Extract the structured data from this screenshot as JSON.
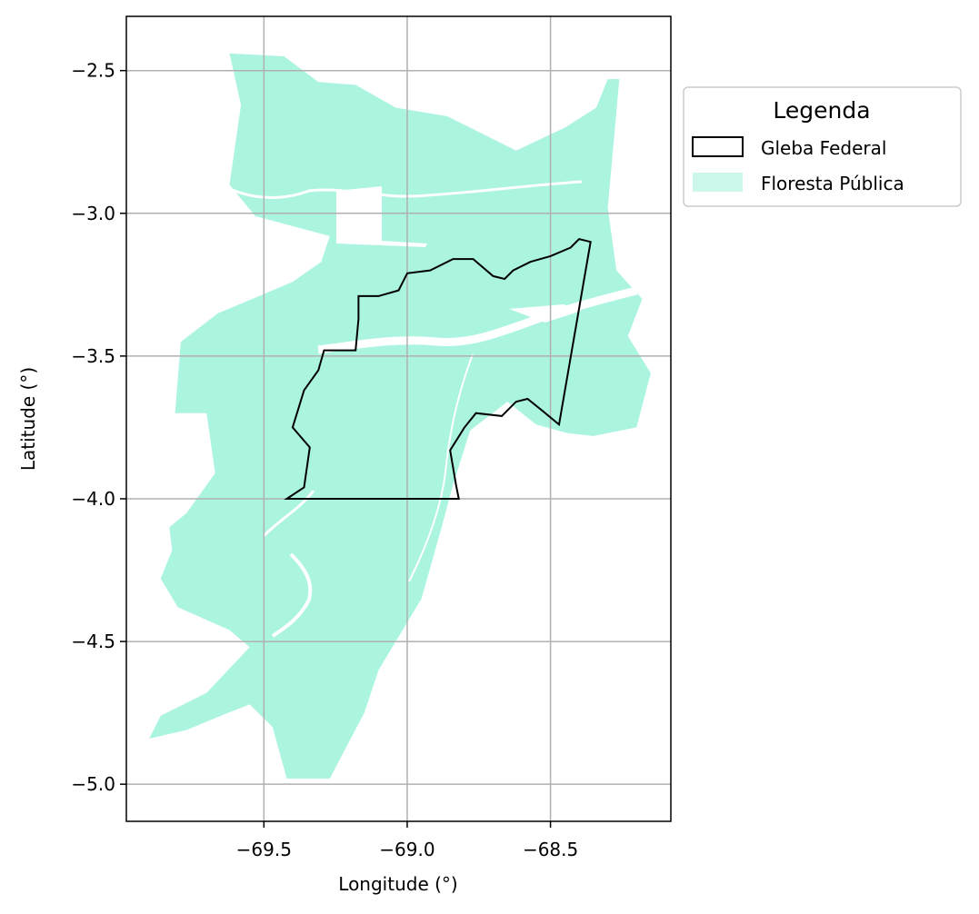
{
  "colors": {
    "forest": "#aaf4e0",
    "forest_legend": "#ccf8ec",
    "boundary": "#000000",
    "grid": "#b0b0b0"
  },
  "axes": {
    "xlabel": "Longitude (°)",
    "ylabel": "Latitude (°)",
    "xlim": [
      -69.98,
      -68.08
    ],
    "ylim": [
      -5.13,
      -2.31
    ],
    "x_ticks": [
      {
        "value": -69.5,
        "label": "−69.5"
      },
      {
        "value": -69.0,
        "label": "−69.0"
      },
      {
        "value": -68.5,
        "label": "−68.5"
      }
    ],
    "y_ticks": [
      {
        "value": -2.5,
        "label": "−2.5"
      },
      {
        "value": -3.0,
        "label": "−3.0"
      },
      {
        "value": -3.5,
        "label": "−3.5"
      },
      {
        "value": -4.0,
        "label": "−4.0"
      },
      {
        "value": -4.5,
        "label": "−4.5"
      },
      {
        "value": -5.0,
        "label": "−5.0"
      }
    ],
    "grid": true
  },
  "legend": {
    "title": "Legenda",
    "placement": "outside-right-top",
    "items": [
      {
        "label": "Gleba Federal",
        "style": "outline"
      },
      {
        "label": "Floresta Pública",
        "style": "fill"
      }
    ]
  },
  "layers": {
    "floresta_publica": [
      [
        -69.62,
        -2.44
      ],
      [
        -69.43,
        -2.45
      ],
      [
        -69.31,
        -2.54
      ],
      [
        -69.18,
        -2.55
      ],
      [
        -69.04,
        -2.63
      ],
      [
        -68.86,
        -2.66
      ],
      [
        -68.78,
        -2.7
      ],
      [
        -68.62,
        -2.78
      ],
      [
        -68.45,
        -2.7
      ],
      [
        -68.34,
        -2.63
      ],
      [
        -68.3,
        -2.53
      ],
      [
        -68.26,
        -2.53
      ],
      [
        -68.3,
        -2.98
      ],
      [
        -68.27,
        -3.2
      ],
      [
        -68.18,
        -3.3
      ],
      [
        -68.23,
        -3.43
      ],
      [
        -68.15,
        -3.56
      ],
      [
        -68.2,
        -3.75
      ],
      [
        -68.35,
        -3.78
      ],
      [
        -68.44,
        -3.77
      ],
      [
        -68.55,
        -3.74
      ],
      [
        -68.65,
        -3.66
      ],
      [
        -68.78,
        -3.76
      ],
      [
        -68.84,
        -3.95
      ],
      [
        -68.88,
        -4.1
      ],
      [
        -68.95,
        -4.35
      ],
      [
        -69.1,
        -4.6
      ],
      [
        -69.15,
        -4.75
      ],
      [
        -69.27,
        -4.98
      ],
      [
        -69.42,
        -4.98
      ],
      [
        -69.47,
        -4.8
      ],
      [
        -69.55,
        -4.72
      ],
      [
        -69.65,
        -4.76
      ],
      [
        -69.77,
        -4.81
      ],
      [
        -69.9,
        -4.84
      ],
      [
        -69.86,
        -4.76
      ],
      [
        -69.7,
        -4.68
      ],
      [
        -69.55,
        -4.52
      ],
      [
        -69.62,
        -4.46
      ],
      [
        -69.8,
        -4.38
      ],
      [
        -69.86,
        -4.28
      ],
      [
        -69.82,
        -4.18
      ],
      [
        -69.83,
        -4.1
      ],
      [
        -69.77,
        -4.05
      ],
      [
        -69.67,
        -3.91
      ],
      [
        -69.7,
        -3.7
      ],
      [
        -69.81,
        -3.7
      ],
      [
        -69.79,
        -3.45
      ],
      [
        -69.66,
        -3.35
      ],
      [
        -69.54,
        -3.3
      ],
      [
        -69.4,
        -3.24
      ],
      [
        -69.3,
        -3.17
      ],
      [
        -69.27,
        -3.08
      ],
      [
        -69.53,
        -3.01
      ],
      [
        -69.62,
        -2.9
      ],
      [
        -69.58,
        -2.62
      ]
    ],
    "gleba_federal": [
      [
        -69.42,
        -4.0
      ],
      [
        -69.36,
        -3.96
      ],
      [
        -69.34,
        -3.82
      ],
      [
        -69.4,
        -3.75
      ],
      [
        -69.36,
        -3.62
      ],
      [
        -69.31,
        -3.55
      ],
      [
        -69.29,
        -3.48
      ],
      [
        -69.18,
        -3.48
      ],
      [
        -69.17,
        -3.37
      ],
      [
        -69.17,
        -3.29
      ],
      [
        -69.1,
        -3.29
      ],
      [
        -69.03,
        -3.27
      ],
      [
        -69.0,
        -3.21
      ],
      [
        -68.92,
        -3.2
      ],
      [
        -68.84,
        -3.16
      ],
      [
        -68.77,
        -3.16
      ],
      [
        -68.7,
        -3.22
      ],
      [
        -68.66,
        -3.23
      ],
      [
        -68.63,
        -3.2
      ],
      [
        -68.57,
        -3.17
      ],
      [
        -68.5,
        -3.15
      ],
      [
        -68.43,
        -3.12
      ],
      [
        -68.4,
        -3.09
      ],
      [
        -68.36,
        -3.1
      ],
      [
        -68.47,
        -3.74
      ],
      [
        -68.53,
        -3.69
      ],
      [
        -68.58,
        -3.65
      ],
      [
        -68.62,
        -3.66
      ],
      [
        -68.67,
        -3.71
      ],
      [
        -68.76,
        -3.7
      ],
      [
        -68.8,
        -3.75
      ],
      [
        -68.85,
        -3.83
      ],
      [
        -68.83,
        -3.95
      ],
      [
        -68.82,
        -4.0
      ],
      [
        -69.42,
        -4.0
      ]
    ]
  }
}
